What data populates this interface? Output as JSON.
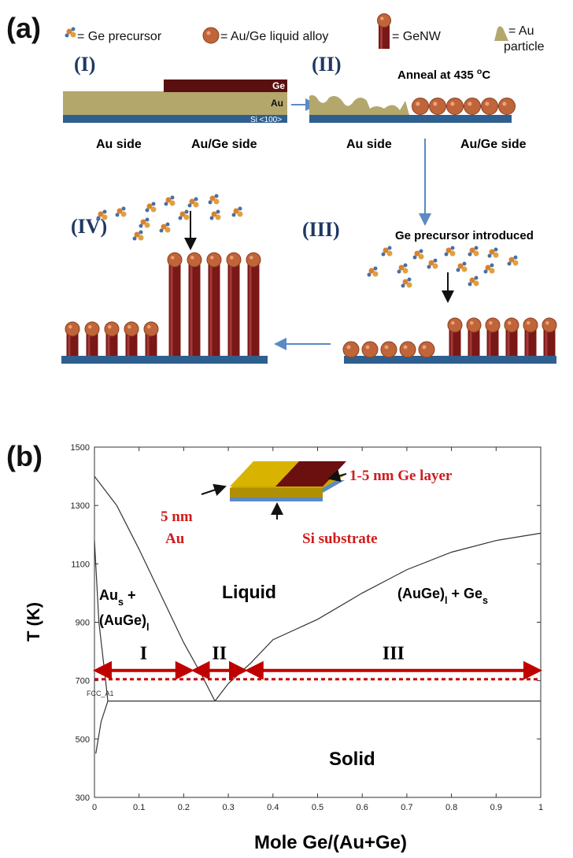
{
  "panel_a": {
    "label": "(a)",
    "legend": [
      "= Ge precursor",
      "= Au/Ge liquid alloy",
      "= GeNW",
      "= Au",
      "particle"
    ],
    "stages": [
      "(I)",
      "(II)",
      "(III)",
      "(IV)"
    ],
    "layers": [
      "Ge",
      "Au",
      "Si <100>"
    ],
    "sides_I": [
      "Au side",
      "Au/Ge side"
    ],
    "sides_II": [
      "Au side",
      "Au/Ge side"
    ],
    "anneal": [
      "Anneal at 435 ",
      "o",
      "C"
    ],
    "precursor_step": "Ge precursor introduced"
  },
  "chart_data": {
    "type": "line",
    "label": "(b)",
    "xlabel": "Mole Ge/(Au+Ge)",
    "ylabel": "T (K)",
    "xlim": [
      0,
      1
    ],
    "ylim": [
      300,
      1500
    ],
    "xticks": [
      0,
      0.1,
      0.2,
      0.3,
      0.4,
      0.5,
      0.6,
      0.7,
      0.8,
      0.9,
      1
    ],
    "yticks": [
      300,
      500,
      700,
      900,
      1100,
      1300,
      1500
    ],
    "series": [
      {
        "color": "#333333",
        "x": [
          0,
          0.05,
          0.1,
          0.15,
          0.2,
          0.24,
          0.27
        ],
        "values": [
          1400,
          1300,
          1150,
          990,
          830,
          720,
          630
        ]
      },
      {
        "color": "#333333",
        "x": [
          0.27,
          0.3,
          0.35,
          0.4,
          0.5,
          0.6,
          0.7,
          0.8,
          0.9,
          1
        ],
        "values": [
          630,
          690,
          760,
          840,
          910,
          1000,
          1080,
          1140,
          1180,
          1205
        ]
      },
      {
        "color": "#333333",
        "x": [
          0.03,
          1
        ],
        "values": [
          630,
          630
        ]
      },
      {
        "color": "#333333",
        "x": [
          0,
          0.01,
          0.025,
          0.03,
          0.015,
          0.003
        ],
        "values": [
          1180,
          900,
          700,
          630,
          560,
          450
        ]
      },
      {
        "color": "#c00000",
        "dashed": true,
        "x": [
          0,
          1
        ],
        "values": [
          705,
          705
        ]
      }
    ],
    "ranges": [
      {
        "label": "I",
        "x": [
          0,
          0.22
        ],
        "y": 735
      },
      {
        "label": "II",
        "x": [
          0.22,
          0.34
        ],
        "y": 735
      },
      {
        "label": "III",
        "x": [
          0.34,
          1
        ],
        "y": 735
      }
    ],
    "range_color": "#c00000",
    "phase_labels": [
      [
        "Au",
        "s",
        " +"
      ],
      [
        "(AuGe)",
        "l"
      ],
      [
        "(AuGe)",
        "l",
        " + Ge",
        "s"
      ]
    ],
    "regions": [
      "Liquid",
      "Solid"
    ],
    "phase_note": "FCC_A1",
    "inset": {
      "ge": "1-5 nm Ge layer",
      "au": [
        "5 nm",
        "Au"
      ],
      "si": "Si substrate"
    }
  }
}
